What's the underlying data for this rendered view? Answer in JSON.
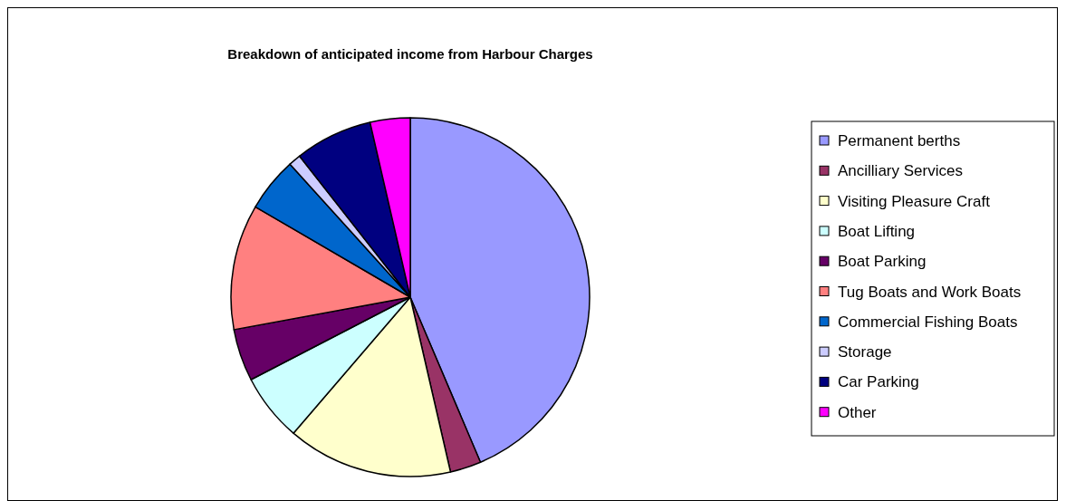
{
  "chart_data": {
    "type": "pie",
    "title": "Breakdown of anticipated income from Harbour Charges",
    "categories": [
      "Permanent berths",
      "Ancilliary Services",
      "Visiting Pleasure Craft",
      "Boat Lifting",
      "Boat Parking",
      "Tug Boats and Work Boats",
      "Commercial Fishing Boats",
      "Storage",
      "Car Parking",
      "Other"
    ],
    "values": [
      43.6,
      2.8,
      14.9,
      6.1,
      4.7,
      11.3,
      4.9,
      1.1,
      7.0,
      3.6
    ],
    "colors": [
      "#9999ff",
      "#993366",
      "#ffffcc",
      "#ccffff",
      "#660066",
      "#ff8080",
      "#0066cc",
      "#ccccff",
      "#000080",
      "#ff00ff"
    ],
    "legend": "right"
  }
}
